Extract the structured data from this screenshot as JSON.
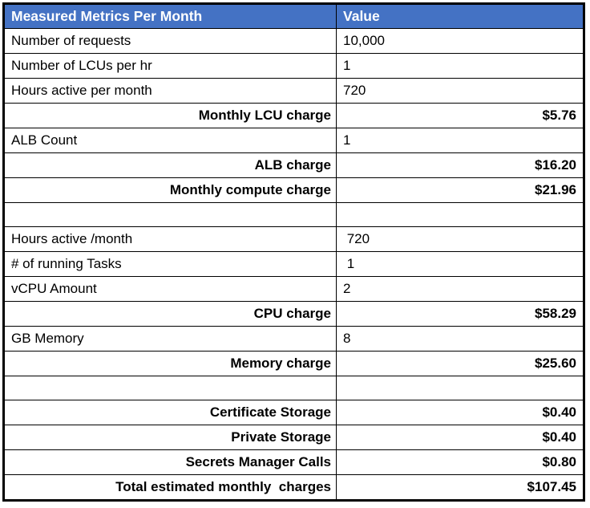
{
  "table": {
    "title": "AWS monthly cost estimate table",
    "colors": {
      "header_bg": "#4472C4",
      "header_text": "#FFFFFF",
      "grid_border": "#000000",
      "body_bg": "#FFFFFF",
      "body_text": "#000000"
    },
    "header": {
      "metric_col": "Measured Metrics Per Month",
      "value_col": "Value"
    },
    "rows": [
      {
        "label": "Number of requests",
        "value": "10,000",
        "type": "input"
      },
      {
        "label": "Number of LCUs per hr",
        "value": "1",
        "type": "input"
      },
      {
        "label": "Hours active per month",
        "value": "720",
        "type": "input"
      },
      {
        "label": "Monthly LCU charge",
        "value": "$5.76",
        "type": "charge"
      },
      {
        "label": "ALB Count",
        "value": "1",
        "type": "input"
      },
      {
        "label": "ALB charge",
        "value": "$16.20",
        "type": "charge"
      },
      {
        "label": "Monthly compute charge",
        "value": "$21.96",
        "type": "charge"
      },
      {
        "label": "",
        "value": "",
        "type": "empty"
      },
      {
        "label": "Hours active /month",
        "value": " 720",
        "type": "input"
      },
      {
        "label": "# of running Tasks",
        "value": " 1",
        "type": "input"
      },
      {
        "label": "vCPU Amount",
        "value": "2",
        "type": "input"
      },
      {
        "label": "CPU charge",
        "value": "$58.29",
        "type": "charge"
      },
      {
        "label": "GB Memory",
        "value": "8",
        "type": "input"
      },
      {
        "label": "Memory charge",
        "value": "$25.60",
        "type": "charge"
      },
      {
        "label": "",
        "value": "",
        "type": "empty"
      },
      {
        "label": "Certificate Storage",
        "value": "$0.40",
        "type": "charge"
      },
      {
        "label": "Private Storage",
        "value": "$0.40",
        "type": "charge"
      },
      {
        "label": "Secrets Manager Calls",
        "value": "$0.80",
        "type": "charge"
      },
      {
        "label": "Total estimated monthly  charges",
        "value": "$107.45",
        "type": "charge"
      }
    ]
  }
}
